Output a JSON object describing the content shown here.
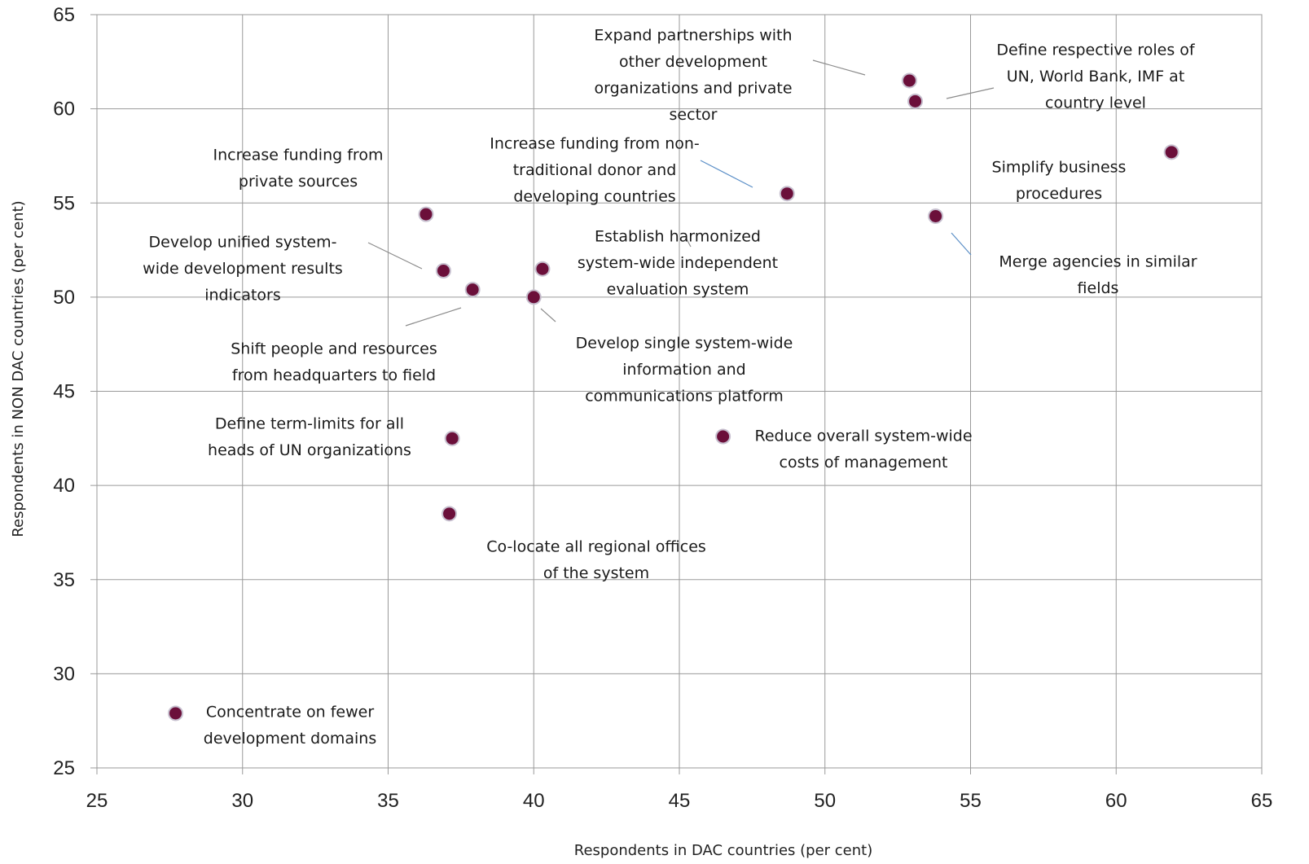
{
  "chart_data": {
    "type": "scatter",
    "title": "",
    "xlabel": "Respondents in DAC countries (per cent)",
    "ylabel": "Respondents in NON DAC countries (per cent)",
    "xlim": [
      25,
      65
    ],
    "ylim": [
      25,
      65
    ],
    "xticks": [
      25,
      30,
      35,
      40,
      45,
      50,
      55,
      60,
      65
    ],
    "yticks": [
      25,
      30,
      35,
      40,
      45,
      50,
      55,
      60,
      65
    ],
    "grid": true,
    "legend": "none",
    "colors": {
      "marker": "#6b0f3a",
      "marker_edge": "#c7c0cf",
      "grid": "#9a9a9a",
      "leader_grey": "#8c8c8c",
      "leader_blue": "#5b8fc7"
    },
    "points": [
      {
        "label": "Expand partnerships with other development organizations and private sector",
        "x": 52.9,
        "y": 61.5
      },
      {
        "label": "Define respective roles of UN, World Bank, IMF at country level",
        "x": 53.1,
        "y": 60.4
      },
      {
        "label": "Simplify business procedures",
        "x": 61.9,
        "y": 57.7
      },
      {
        "label": "Increase funding from non-traditional donor and developing countries",
        "x": 48.7,
        "y": 55.5
      },
      {
        "label": "Merge agencies in similar fields",
        "x": 53.8,
        "y": 54.3
      },
      {
        "label": "Increase funding from private sources",
        "x": 36.3,
        "y": 54.4
      },
      {
        "label": "Develop unified system-wide development results indicators",
        "x": 36.9,
        "y": 51.4
      },
      {
        "label": "Establish harmonized system-wide independent evaluation system",
        "x": 40.3,
        "y": 51.5
      },
      {
        "label": "Shift people and resources from headquarters to field",
        "x": 37.9,
        "y": 50.4
      },
      {
        "label": "Develop single system-wide information and communications platform",
        "x": 40.0,
        "y": 50.0
      },
      {
        "label": "Define term-limits for all heads of UN organizations",
        "x": 37.2,
        "y": 42.5
      },
      {
        "label": "Reduce overall system-wide costs of management",
        "x": 46.5,
        "y": 42.6
      },
      {
        "label": "Co-locate all regional offices of the system",
        "x": 37.1,
        "y": 38.5
      },
      {
        "label": "Concentrate on fewer development domains",
        "x": 27.7,
        "y": 27.9
      }
    ],
    "annotations": [
      {
        "lines": [
          "Expand partnerships with",
          "other development",
          "organizations and private",
          "sector"
        ]
      },
      {
        "lines": [
          "Define respective roles of",
          "UN, World Bank, IMF at",
          "country level"
        ]
      },
      {
        "lines": [
          "Simplify business",
          "procedures"
        ]
      },
      {
        "lines": [
          "Increase funding from non-",
          "traditional donor and",
          "developing countries"
        ]
      },
      {
        "lines": [
          "Merge agencies in similar",
          "fields"
        ]
      },
      {
        "lines": [
          "Increase funding from",
          "private sources"
        ]
      },
      {
        "lines": [
          "Develop unified system-",
          "wide development results",
          "indicators"
        ]
      },
      {
        "lines": [
          "Establish harmonized",
          "system-wide independent",
          "evaluation system"
        ]
      },
      {
        "lines": [
          "Shift people and resources",
          "from headquarters to field"
        ]
      },
      {
        "lines": [
          "Develop single system-wide",
          "information and",
          "communications platform"
        ]
      },
      {
        "lines": [
          "Define term-limits for all",
          "heads of UN organizations"
        ]
      },
      {
        "lines": [
          "Reduce overall system-wide",
          "costs of management"
        ]
      },
      {
        "lines": [
          "Co-locate all regional offices",
          "of the system"
        ]
      },
      {
        "lines": [
          "Concentrate on fewer",
          "development domains"
        ]
      }
    ]
  }
}
